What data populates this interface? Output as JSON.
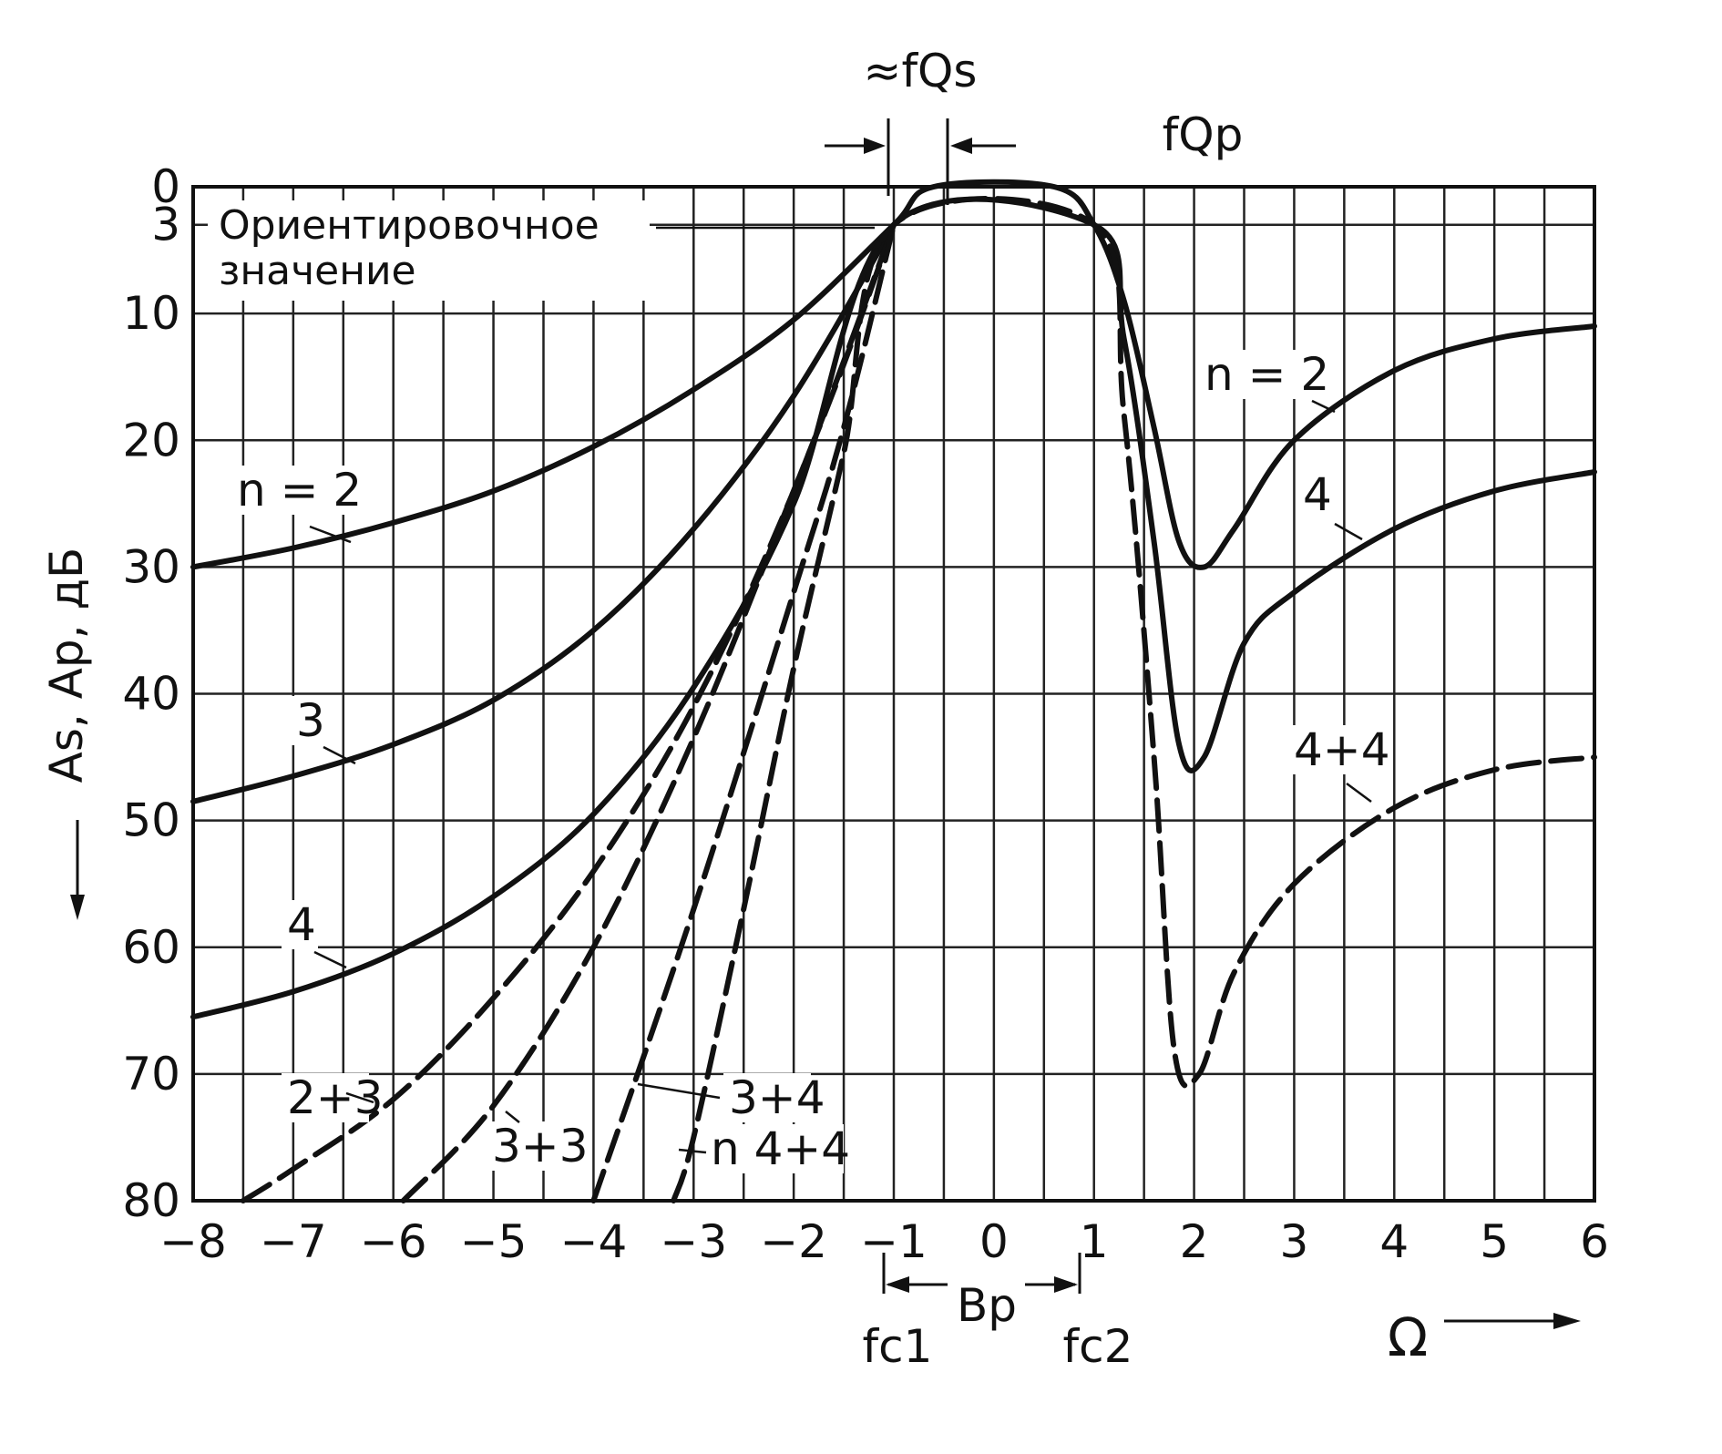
{
  "chart_data": {
    "type": "line",
    "title": "",
    "xlabel": "Ω",
    "ylabel": "As, Ap, дБ",
    "xlim": [
      -8,
      6
    ],
    "ylim": [
      80,
      0
    ],
    "y_inverted": true,
    "grid": true,
    "x_ticks": [
      -8,
      -7,
      -6,
      -5,
      -4,
      -3,
      -2,
      -1,
      0,
      1,
      2,
      3,
      4,
      5,
      6
    ],
    "y_ticks": [
      0,
      3,
      10,
      20,
      30,
      40,
      50,
      60,
      70,
      80
    ],
    "x_tick_labels": [
      "−8",
      "−7",
      "−6",
      "−5",
      "−4",
      "−3",
      "−2",
      "−1",
      "0",
      "1",
      "2",
      "3",
      "4",
      "5",
      "6"
    ],
    "y_tick_labels": [
      "0",
      "3",
      "10",
      "20",
      "30",
      "40",
      "50",
      "60",
      "70",
      "80"
    ],
    "note": "Ориентировочное значение",
    "passband": {
      "label_bp": "Bp",
      "f_c1": "fc1",
      "f_c2": "fc2",
      "f_qs": "≈fQs",
      "f_qp": "fQp",
      "edges": [
        -1,
        1
      ]
    },
    "series": [
      {
        "name": "n = 2",
        "style": "solid",
        "x": [
          -8,
          -7,
          -6,
          -5,
          -4,
          -3,
          -2,
          -1,
          -0.6,
          0.6,
          1,
          1.3,
          1.6,
          1.85,
          2.1,
          2.4,
          3,
          4,
          5,
          6
        ],
        "y": [
          30,
          28.5,
          26.5,
          24,
          20.5,
          16,
          10.5,
          3,
          0,
          0,
          3,
          9,
          19,
          28,
          30,
          27,
          20,
          14.5,
          12,
          11
        ]
      },
      {
        "name": "3",
        "style": "solid",
        "x": [
          -8,
          -7,
          -6,
          -5,
          -4,
          -3,
          -2,
          -1
        ],
        "y": [
          48.5,
          46.5,
          44,
          40.5,
          35,
          27,
          16.5,
          3
        ]
      },
      {
        "name": "4",
        "style": "solid",
        "x": [
          -8,
          -7,
          -6,
          -5,
          -4,
          -3,
          -2,
          -1,
          1,
          1.3,
          1.6,
          1.85,
          2.1,
          2.5,
          3,
          4,
          5,
          6
        ],
        "y": [
          65.5,
          63.5,
          60.5,
          56,
          49.5,
          39.5,
          25,
          3,
          3,
          12,
          28,
          44,
          45,
          36,
          32,
          27,
          24,
          22.5
        ]
      },
      {
        "name": "2+3",
        "style": "dashed",
        "x": [
          -7.5,
          -7,
          -6,
          -5,
          -4,
          -3,
          -2,
          -1
        ],
        "y": [
          80,
          77.5,
          72,
          64,
          54,
          41,
          24,
          3
        ]
      },
      {
        "name": "3+3",
        "style": "dashed",
        "x": [
          -5.9,
          -5,
          -4,
          -3,
          -2,
          -1.5,
          -1
        ],
        "y": [
          80,
          72.5,
          60,
          43.5,
          24,
          14,
          3
        ]
      },
      {
        "name": "3+4",
        "style": "dashed",
        "x": [
          -4,
          -3,
          -2,
          -1.5,
          -1
        ],
        "y": [
          80,
          57,
          32,
          19,
          3
        ]
      },
      {
        "name": "n 4+4",
        "style": "dashed",
        "x": [
          -3.2,
          -3,
          -2.5,
          -2,
          -1.5,
          -1,
          1,
          1.3,
          1.6,
          1.8,
          2.05,
          2.4,
          3,
          4,
          5,
          6
        ],
        "y": [
          80,
          75,
          57,
          38,
          21,
          3,
          3,
          18,
          45,
          68,
          70,
          62,
          55,
          49,
          46,
          45
        ]
      }
    ],
    "curve_labels": [
      "n = 2",
      "3",
      "4",
      "2+3",
      "3+3",
      "3+4",
      "n 4+4",
      "n = 2",
      "4",
      "4+4"
    ]
  }
}
